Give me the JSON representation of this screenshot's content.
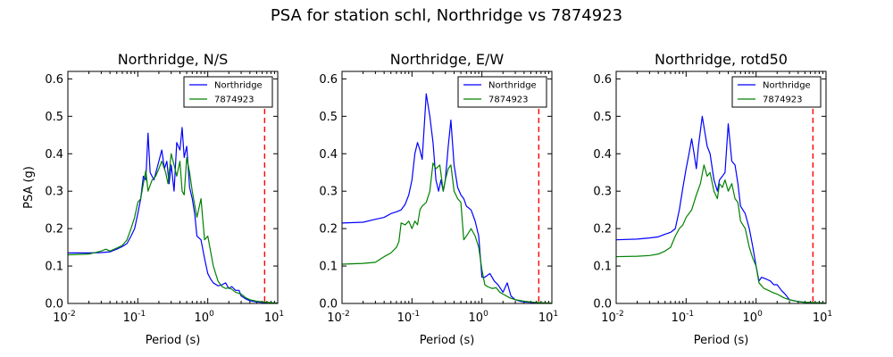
{
  "suptitle": "PSA for station schl, Northridge vs 7874923",
  "colors": {
    "series_0": "#0000ff",
    "series_1": "#008000",
    "cutoff": "#ff0000"
  },
  "chart_data": [
    {
      "type": "line",
      "title": "Northridge, N/S",
      "xlabel": "Period (s)",
      "ylabel": "PSA (g)",
      "xscale": "log",
      "xlim": [
        0.01,
        10
      ],
      "ylim": [
        0,
        0.62
      ],
      "xticks": [
        0.01,
        0.1,
        1,
        10
      ],
      "xtick_labels": [
        {
          "base": "10",
          "exp": "-2"
        },
        {
          "base": "10",
          "exp": "-1"
        },
        {
          "base": "10",
          "exp": "0"
        },
        {
          "base": "10",
          "exp": "1"
        }
      ],
      "yticks": [
        "0.0",
        "0.1",
        "0.2",
        "0.3",
        "0.4",
        "0.5",
        "0.6"
      ],
      "legend_position": "top-right",
      "vline": {
        "x": 6.5,
        "style": "dashed"
      },
      "series": [
        {
          "name": "Northridge",
          "x": [
            0.01,
            0.02,
            0.03,
            0.04,
            0.05,
            0.06,
            0.07,
            0.08,
            0.09,
            0.1,
            0.11,
            0.12,
            0.13,
            0.14,
            0.15,
            0.17,
            0.2,
            0.22,
            0.24,
            0.26,
            0.28,
            0.3,
            0.33,
            0.36,
            0.4,
            0.43,
            0.46,
            0.5,
            0.55,
            0.6,
            0.65,
            0.7,
            0.8,
            0.9,
            1.0,
            1.1,
            1.2,
            1.4,
            1.6,
            1.8,
            2.0,
            2.2,
            2.5,
            2.8,
            3.0,
            3.5,
            4.0,
            5.0,
            6.0,
            7.5,
            10
          ],
          "values": [
            0.135,
            0.135,
            0.136,
            0.138,
            0.145,
            0.152,
            0.16,
            0.18,
            0.2,
            0.24,
            0.28,
            0.34,
            0.33,
            0.455,
            0.35,
            0.33,
            0.38,
            0.41,
            0.36,
            0.38,
            0.32,
            0.37,
            0.3,
            0.43,
            0.41,
            0.47,
            0.39,
            0.42,
            0.31,
            0.28,
            0.24,
            0.18,
            0.17,
            0.12,
            0.08,
            0.065,
            0.055,
            0.047,
            0.05,
            0.055,
            0.04,
            0.045,
            0.035,
            0.035,
            0.02,
            0.012,
            0.007,
            0.004,
            0.003,
            0.002,
            0.001
          ]
        },
        {
          "name": "7874923",
          "x": [
            0.01,
            0.02,
            0.03,
            0.035,
            0.04,
            0.05,
            0.06,
            0.07,
            0.08,
            0.09,
            0.1,
            0.11,
            0.12,
            0.13,
            0.14,
            0.16,
            0.18,
            0.2,
            0.22,
            0.25,
            0.27,
            0.3,
            0.33,
            0.36,
            0.4,
            0.43,
            0.46,
            0.5,
            0.55,
            0.6,
            0.7,
            0.8,
            0.9,
            1.0,
            1.2,
            1.4,
            1.6,
            1.8,
            2.0,
            2.2,
            2.5,
            3.0,
            3.5,
            4.0,
            5.0,
            7.0,
            10
          ],
          "values": [
            0.13,
            0.132,
            0.14,
            0.145,
            0.14,
            0.148,
            0.155,
            0.17,
            0.2,
            0.23,
            0.27,
            0.28,
            0.32,
            0.355,
            0.3,
            0.33,
            0.34,
            0.36,
            0.38,
            0.35,
            0.32,
            0.4,
            0.37,
            0.34,
            0.38,
            0.3,
            0.29,
            0.39,
            0.35,
            0.3,
            0.23,
            0.28,
            0.17,
            0.18,
            0.1,
            0.06,
            0.045,
            0.04,
            0.042,
            0.038,
            0.03,
            0.025,
            0.015,
            0.01,
            0.006,
            0.003,
            0.001
          ]
        }
      ]
    },
    {
      "type": "line",
      "title": "Northridge, E/W",
      "xlabel": "Period (s)",
      "ylabel": "",
      "xscale": "log",
      "xlim": [
        0.01,
        10
      ],
      "ylim": [
        0,
        0.62
      ],
      "xticks": [
        0.01,
        0.1,
        1,
        10
      ],
      "xtick_labels": [
        {
          "base": "10",
          "exp": "-2"
        },
        {
          "base": "10",
          "exp": "-1"
        },
        {
          "base": "10",
          "exp": "0"
        },
        {
          "base": "10",
          "exp": "1"
        }
      ],
      "yticks": [
        "0.0",
        "0.1",
        "0.2",
        "0.3",
        "0.4",
        "0.5",
        "0.6"
      ],
      "legend_position": "top-right",
      "vline": {
        "x": 6.5,
        "style": "dashed"
      },
      "series": [
        {
          "name": "Northridge",
          "x": [
            0.01,
            0.02,
            0.03,
            0.04,
            0.05,
            0.06,
            0.07,
            0.08,
            0.09,
            0.1,
            0.11,
            0.12,
            0.13,
            0.14,
            0.16,
            0.18,
            0.2,
            0.22,
            0.24,
            0.26,
            0.28,
            0.3,
            0.33,
            0.36,
            0.4,
            0.45,
            0.5,
            0.55,
            0.6,
            0.7,
            0.8,
            0.9,
            1.0,
            1.1,
            1.3,
            1.5,
            1.7,
            2.0,
            2.3,
            2.6,
            3.0,
            3.5,
            4.0,
            5.0,
            6.0,
            8.0,
            10
          ],
          "values": [
            0.215,
            0.217,
            0.225,
            0.23,
            0.24,
            0.245,
            0.25,
            0.265,
            0.29,
            0.33,
            0.4,
            0.43,
            0.41,
            0.385,
            0.56,
            0.5,
            0.43,
            0.33,
            0.3,
            0.33,
            0.3,
            0.33,
            0.42,
            0.49,
            0.37,
            0.31,
            0.29,
            0.28,
            0.26,
            0.25,
            0.22,
            0.18,
            0.07,
            0.07,
            0.08,
            0.06,
            0.05,
            0.03,
            0.055,
            0.02,
            0.01,
            0.006,
            0.004,
            0.003,
            0.002,
            0.001,
            0.001
          ]
        },
        {
          "name": "7874923",
          "x": [
            0.01,
            0.02,
            0.03,
            0.035,
            0.04,
            0.05,
            0.06,
            0.065,
            0.07,
            0.08,
            0.09,
            0.1,
            0.11,
            0.12,
            0.13,
            0.14,
            0.16,
            0.18,
            0.2,
            0.22,
            0.25,
            0.28,
            0.3,
            0.33,
            0.36,
            0.4,
            0.45,
            0.5,
            0.55,
            0.6,
            0.65,
            0.7,
            0.8,
            0.9,
            1.0,
            1.1,
            1.2,
            1.4,
            1.6,
            1.8,
            2.0,
            2.5,
            3.0,
            4.0,
            5.0,
            7.0,
            10
          ],
          "values": [
            0.105,
            0.107,
            0.11,
            0.118,
            0.125,
            0.135,
            0.15,
            0.165,
            0.215,
            0.21,
            0.22,
            0.2,
            0.22,
            0.21,
            0.25,
            0.26,
            0.27,
            0.3,
            0.375,
            0.36,
            0.37,
            0.3,
            0.33,
            0.36,
            0.37,
            0.3,
            0.28,
            0.27,
            0.17,
            0.18,
            0.19,
            0.2,
            0.18,
            0.15,
            0.09,
            0.05,
            0.045,
            0.04,
            0.042,
            0.03,
            0.025,
            0.015,
            0.01,
            0.006,
            0.004,
            0.002,
            0.001
          ]
        }
      ]
    },
    {
      "type": "line",
      "title": "Northridge, rotd50",
      "xlabel": "Period (s)",
      "ylabel": "",
      "xscale": "log",
      "xlim": [
        0.01,
        10
      ],
      "ylim": [
        0,
        0.62
      ],
      "xticks": [
        0.01,
        0.1,
        1,
        10
      ],
      "xtick_labels": [
        {
          "base": "10",
          "exp": "-2"
        },
        {
          "base": "10",
          "exp": "-1"
        },
        {
          "base": "10",
          "exp": "0"
        },
        {
          "base": "10",
          "exp": "1"
        }
      ],
      "yticks": [
        "0.0",
        "0.1",
        "0.2",
        "0.3",
        "0.4",
        "0.5",
        "0.6"
      ],
      "legend_position": "top-right",
      "vline": {
        "x": 6.5,
        "style": "dashed"
      },
      "series": [
        {
          "name": "Northridge",
          "x": [
            0.01,
            0.02,
            0.03,
            0.04,
            0.05,
            0.06,
            0.065,
            0.07,
            0.08,
            0.09,
            0.1,
            0.11,
            0.12,
            0.13,
            0.14,
            0.15,
            0.17,
            0.2,
            0.22,
            0.25,
            0.28,
            0.3,
            0.33,
            0.36,
            0.4,
            0.45,
            0.5,
            0.55,
            0.6,
            0.7,
            0.8,
            0.9,
            1.0,
            1.1,
            1.2,
            1.4,
            1.6,
            1.8,
            2.0,
            2.3,
            2.6,
            3.0,
            4.0,
            5.0,
            7.0,
            10
          ],
          "values": [
            0.17,
            0.172,
            0.175,
            0.178,
            0.185,
            0.19,
            0.195,
            0.2,
            0.25,
            0.31,
            0.36,
            0.4,
            0.44,
            0.4,
            0.36,
            0.42,
            0.5,
            0.42,
            0.4,
            0.33,
            0.3,
            0.33,
            0.34,
            0.35,
            0.48,
            0.38,
            0.37,
            0.32,
            0.26,
            0.24,
            0.2,
            0.15,
            0.1,
            0.06,
            0.07,
            0.065,
            0.06,
            0.05,
            0.05,
            0.035,
            0.025,
            0.01,
            0.005,
            0.003,
            0.002,
            0.001
          ]
        },
        {
          "name": "7874923",
          "x": [
            0.01,
            0.02,
            0.03,
            0.04,
            0.05,
            0.06,
            0.07,
            0.08,
            0.09,
            0.1,
            0.12,
            0.14,
            0.16,
            0.18,
            0.2,
            0.22,
            0.25,
            0.28,
            0.3,
            0.33,
            0.36,
            0.4,
            0.45,
            0.5,
            0.55,
            0.6,
            0.7,
            0.8,
            0.9,
            1.0,
            1.1,
            1.3,
            1.5,
            1.7,
            2.0,
            2.5,
            3.0,
            4.0,
            5.0,
            7.0,
            10
          ],
          "values": [
            0.125,
            0.126,
            0.128,
            0.132,
            0.14,
            0.15,
            0.18,
            0.2,
            0.21,
            0.23,
            0.25,
            0.29,
            0.32,
            0.37,
            0.34,
            0.35,
            0.3,
            0.28,
            0.32,
            0.31,
            0.33,
            0.3,
            0.32,
            0.28,
            0.27,
            0.22,
            0.2,
            0.15,
            0.12,
            0.1,
            0.055,
            0.04,
            0.035,
            0.03,
            0.025,
            0.015,
            0.01,
            0.005,
            0.003,
            0.002,
            0.001
          ]
        }
      ]
    }
  ]
}
